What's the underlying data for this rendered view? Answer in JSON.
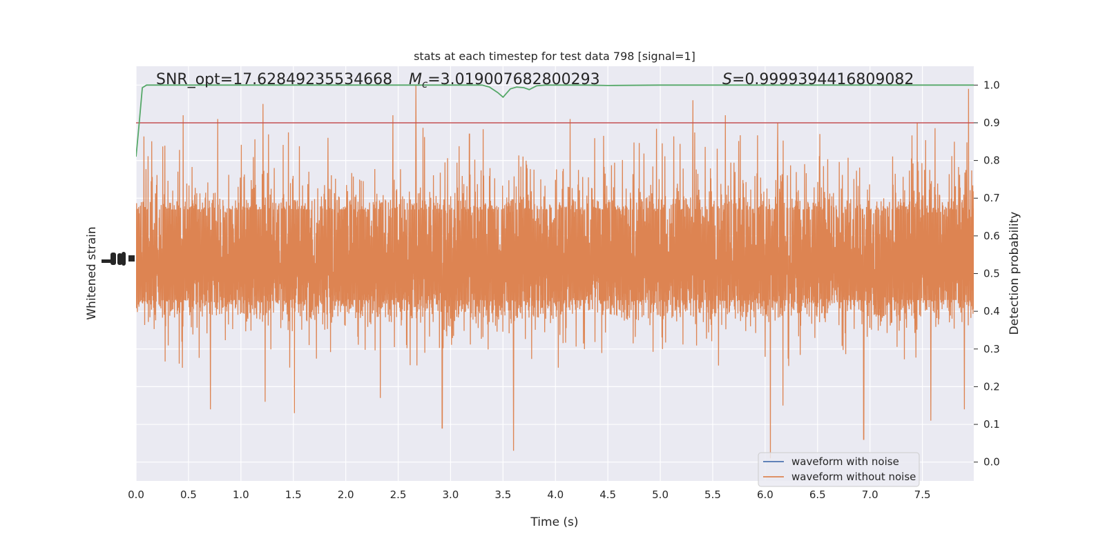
{
  "chart_data": {
    "type": "line",
    "title": "stats at each timestep for test data 798 [signal=1]",
    "xlabel": "Time (s)",
    "ylabel_left": "Whitened strain",
    "ylabel_right": "Detection probability",
    "xlim": [
      0.0,
      7.99
    ],
    "ylim_right": [
      -0.05,
      1.05
    ],
    "x_ticks": [
      "0.0",
      "0.5",
      "1.0",
      "1.5",
      "2.0",
      "2.5",
      "3.0",
      "3.5",
      "4.0",
      "4.5",
      "5.0",
      "5.5",
      "6.0",
      "6.5",
      "7.0",
      "7.5"
    ],
    "right_ticks": [
      "0.0",
      "0.1",
      "0.2",
      "0.3",
      "0.4",
      "0.5",
      "0.6",
      "0.7",
      "0.8",
      "0.9",
      "1.0"
    ],
    "left_ticks_note": "overlapping unreadable tick labels",
    "annotations": {
      "snr": "SNR_opt=17.62849235534668",
      "mc_symbol": "M",
      "mc_sub": "c",
      "mc_value": "=3.019007682800293",
      "s_symbol": "S",
      "s_value": "=0.9999394416809082"
    },
    "threshold": {
      "value": 0.9,
      "color": "#c44e52"
    },
    "legend": {
      "position": "lower-right",
      "entries": [
        {
          "label": "waveform with noise",
          "color": "#4c72b0"
        },
        {
          "label": "waveform without noise",
          "color": "#dd8452"
        }
      ]
    },
    "series": [
      {
        "name": "waveform without noise",
        "color": "#dd8452",
        "description_values": "dense oscillation centred at 0.5 on the probability axis",
        "band_low": 0.4,
        "band_high": 0.7,
        "peaks": [
          {
            "x": 0.45,
            "y": 0.92
          },
          {
            "x": 0.78,
            "y": 0.91
          },
          {
            "x": 1.21,
            "y": 0.95
          },
          {
            "x": 1.83,
            "y": 0.86
          },
          {
            "x": 2.45,
            "y": 0.92
          },
          {
            "x": 2.67,
            "y": 1.0
          },
          {
            "x": 3.18,
            "y": 0.87
          },
          {
            "x": 4.14,
            "y": 0.91
          },
          {
            "x": 5.31,
            "y": 0.96
          },
          {
            "x": 5.62,
            "y": 0.92
          },
          {
            "x": 6.12,
            "y": 0.9
          },
          {
            "x": 7.45,
            "y": 0.9
          },
          {
            "x": 7.94,
            "y": 0.99
          }
        ],
        "troughs": [
          {
            "x": 0.71,
            "y": 0.14
          },
          {
            "x": 1.51,
            "y": 0.13
          },
          {
            "x": 2.92,
            "y": 0.09
          },
          {
            "x": 3.6,
            "y": 0.03
          },
          {
            "x": 6.05,
            "y": 0.01
          },
          {
            "x": 6.17,
            "y": 0.15
          },
          {
            "x": 6.94,
            "y": 0.06
          },
          {
            "x": 7.58,
            "y": 0.11
          },
          {
            "x": 7.9,
            "y": 0.14
          },
          {
            "x": 1.23,
            "y": 0.16
          },
          {
            "x": 2.33,
            "y": 0.17
          }
        ]
      },
      {
        "name": "waveform with noise",
        "color": "#4c72b0",
        "description_values": "hidden behind the orange trace"
      },
      {
        "name": "detection probability",
        "color": "#55a868",
        "x": [
          0.0,
          0.03,
          0.06,
          0.1,
          0.2,
          0.5,
          1.0,
          2.0,
          3.0,
          3.3,
          3.37,
          3.45,
          3.5,
          3.57,
          3.63,
          3.7,
          3.75,
          3.82,
          3.9,
          4.0,
          4.3,
          4.5,
          5.0,
          6.0,
          7.0,
          7.99
        ],
        "y": [
          0.81,
          0.9,
          0.993,
          1.0,
          1.0,
          1.0,
          1.0,
          1.0,
          1.0,
          1.0,
          0.995,
          0.98,
          0.968,
          0.99,
          0.995,
          0.993,
          0.988,
          0.998,
          1.0,
          1.0,
          1.0,
          0.999,
          1.0,
          1.0,
          1.0,
          1.0
        ]
      }
    ]
  }
}
